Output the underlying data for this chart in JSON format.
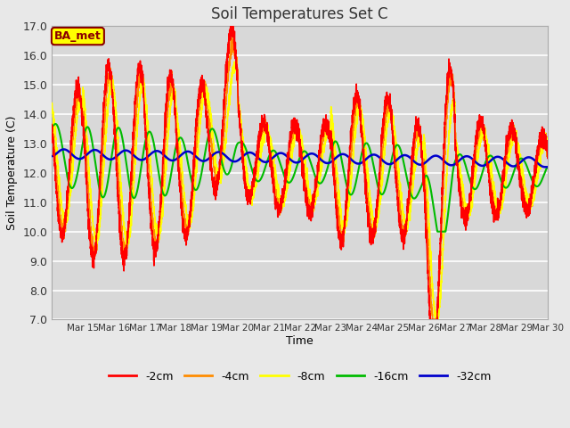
{
  "title": "Soil Temperatures Set C",
  "xlabel": "Time",
  "ylabel": "Soil Temperature (C)",
  "ylim": [
    7.0,
    17.0
  ],
  "yticks": [
    7.0,
    8.0,
    9.0,
    10.0,
    11.0,
    12.0,
    13.0,
    14.0,
    15.0,
    16.0,
    17.0
  ],
  "fig_bg_color": "#e8e8e8",
  "plot_bg_color": "#d8d8d8",
  "annotation_text": "BA_met",
  "annotation_bg": "#ffff00",
  "annotation_border": "#8B0000",
  "series_colors": [
    "#ff0000",
    "#ff8c00",
    "#ffff00",
    "#00bb00",
    "#0000cc"
  ],
  "series_labels": [
    "-2cm",
    "-4cm",
    "-8cm",
    "-16cm",
    "-32cm"
  ],
  "xtick_labels": [
    "Mar 15",
    "Mar 16",
    "Mar 17",
    "Mar 18",
    "Mar 19",
    "Mar 20",
    "Mar 21",
    "Mar 22",
    "Mar 23",
    "Mar 24",
    "Mar 25",
    "Mar 26",
    "Mar 27",
    "Mar 28",
    "Mar 29",
    "Mar 30"
  ],
  "num_days": 16,
  "figsize": [
    6.4,
    4.8
  ],
  "dpi": 100
}
